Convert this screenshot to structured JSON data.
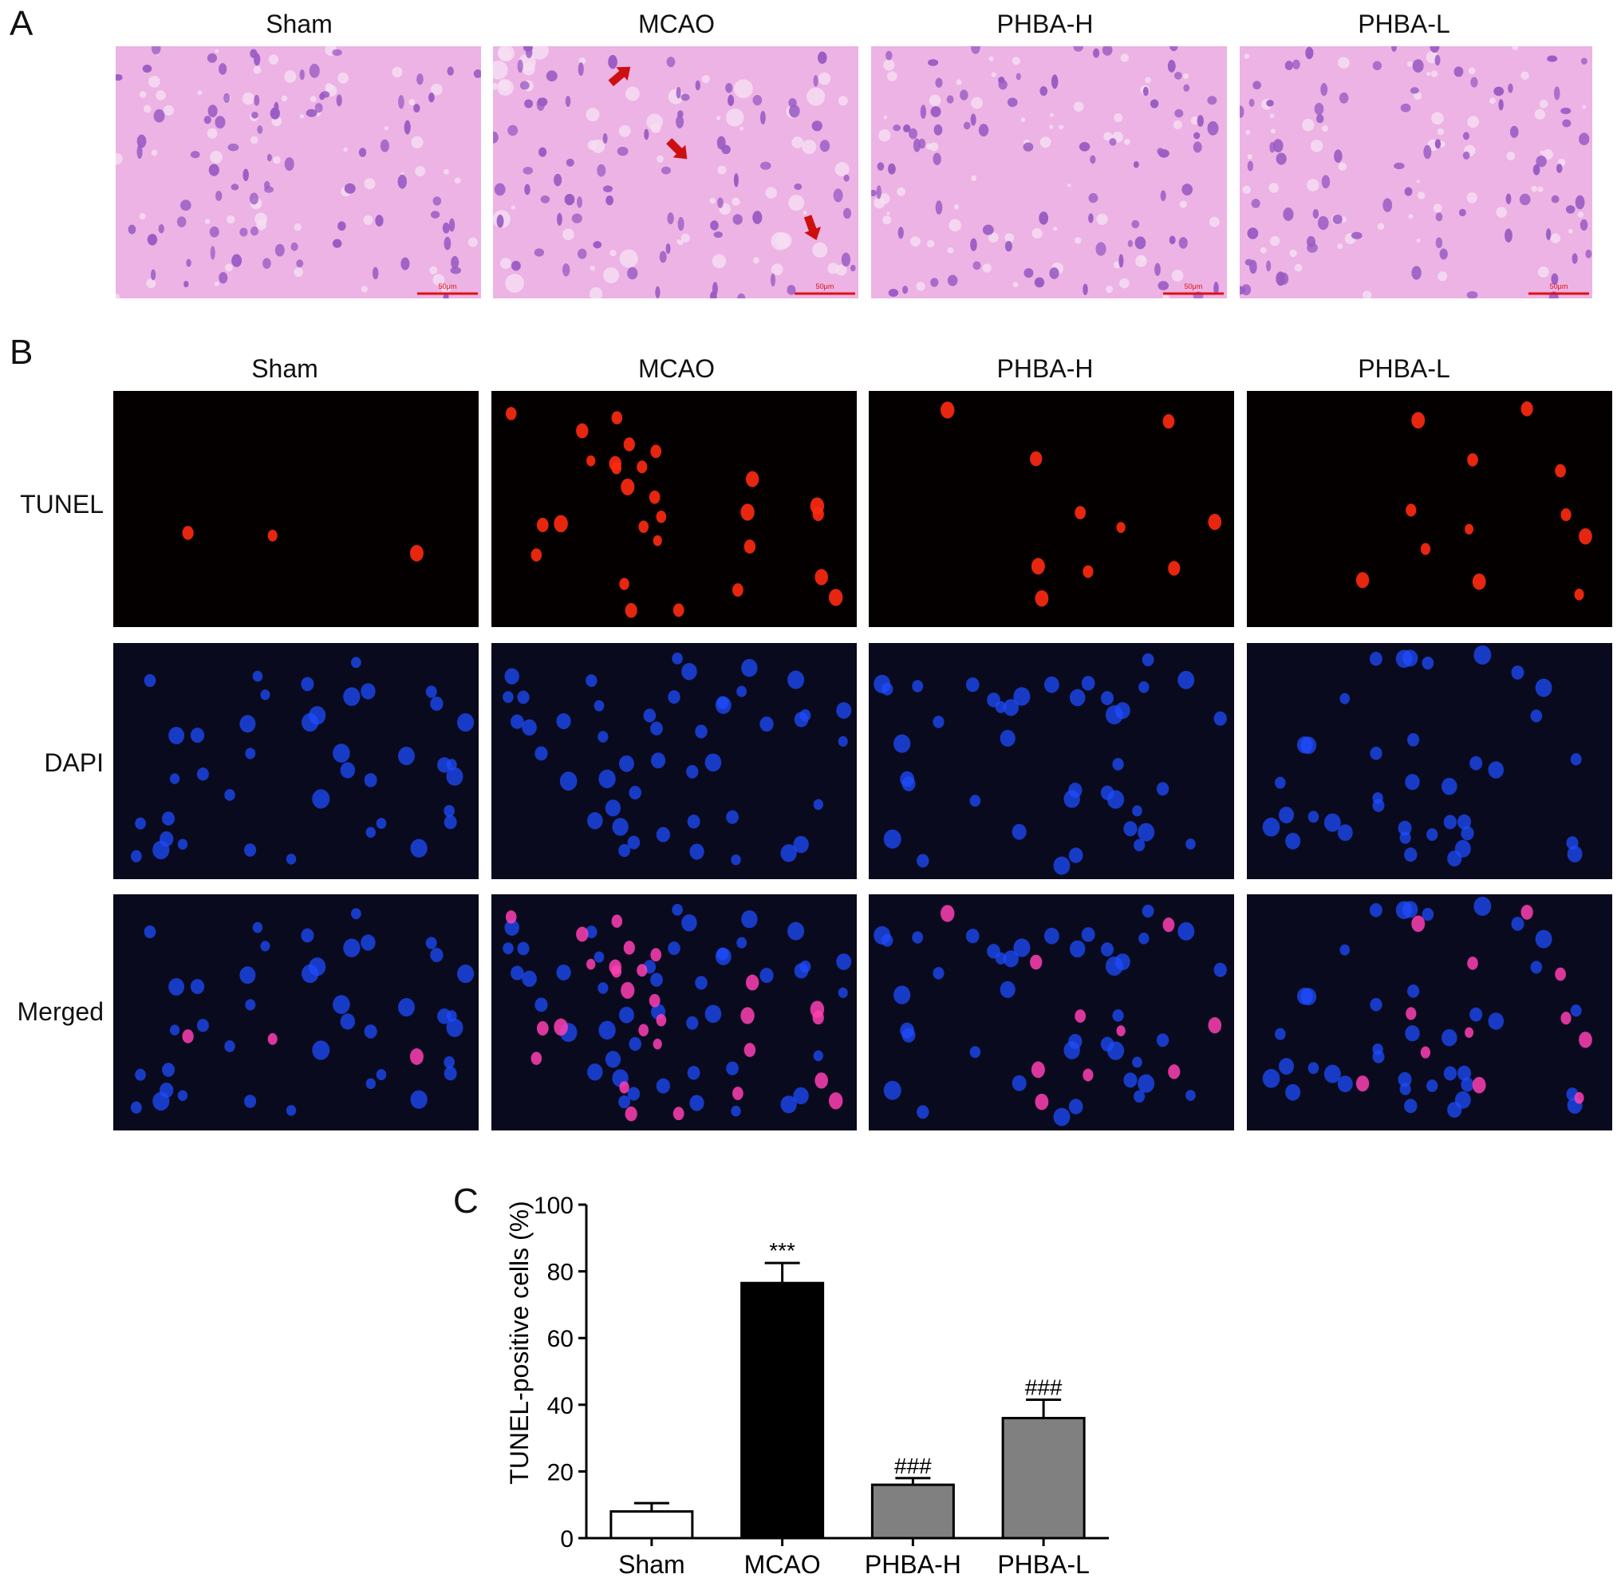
{
  "panel_a": {
    "letter": "A",
    "columns": [
      "Sham",
      "MCAO",
      "PHBA-H",
      "PHBA-L"
    ],
    "scale_bar": "50μm"
  },
  "panel_b": {
    "letter": "B",
    "columns": [
      "Sham",
      "MCAO",
      "PHBA-H",
      "PHBA-L"
    ],
    "rows": [
      "TUNEL",
      "DAPI",
      "Merged"
    ]
  },
  "panel_c": {
    "letter": "C"
  },
  "colors": {
    "he_background": "#ecb3e4",
    "he_nucleus": "#9a5cc4",
    "tunel": "#ff2a10",
    "dapi": "#1e4cff",
    "merged_overlap": "#ff3fb4",
    "arrow": "#cc1010",
    "scale_bar": "#e01010",
    "bar_black": "#000000",
    "bar_gray": "#808080",
    "bar_white": "#ffffff"
  },
  "chart_data": {
    "type": "bar",
    "categories": [
      "Sham",
      "MCAO",
      "PHBA-H",
      "PHBA-L"
    ],
    "values": [
      8,
      76.5,
      16,
      36
    ],
    "errors": [
      2.5,
      6,
      2,
      5.5
    ],
    "bar_colors": [
      "#ffffff",
      "#000000",
      "#808080",
      "#808080"
    ],
    "annotations": [
      "",
      "***",
      "###",
      "###"
    ],
    "ylabel": "TUNEL-positive cells (%)",
    "xlabel": "",
    "ylim": [
      0,
      100
    ],
    "yticks": [
      0,
      20,
      40,
      60,
      80,
      100
    ]
  }
}
